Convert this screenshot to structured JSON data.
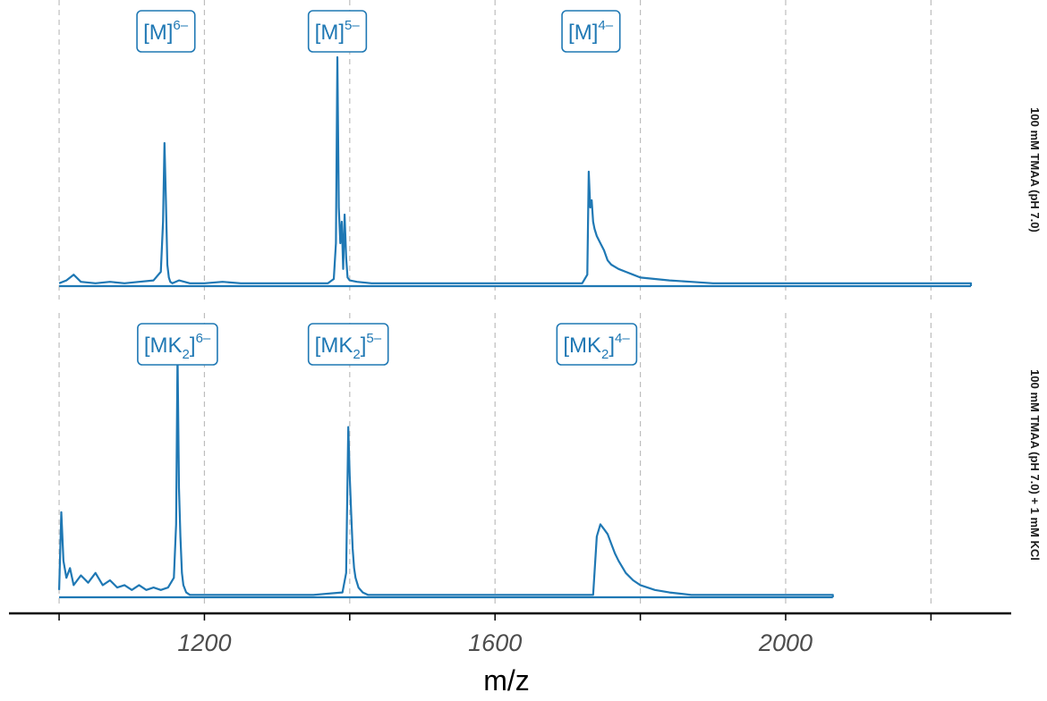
{
  "chart_data": {
    "type": "line",
    "xlabel": "m/z",
    "ylabel": "",
    "xlim": [
      995,
      2255
    ],
    "xticks": [
      1200,
      1600,
      2000
    ],
    "xtick_labels": [
      "1200",
      "1600",
      "2000"
    ],
    "grid_x": [
      1000,
      1200,
      1400,
      1600,
      1800,
      2000,
      2200
    ],
    "grid": "vertical dashed",
    "facets": [
      {
        "strip_label": "100 mM TMAA (pH 7.0)",
        "x_end": 2255,
        "series": [
          {
            "name": "",
            "x": [
              1000,
              1010,
              1020,
              1030,
              1050,
              1070,
              1090,
              1110,
              1130,
              1140,
              1143,
              1145,
              1147,
              1149,
              1151,
              1153,
              1156,
              1165,
              1180,
              1200,
              1225,
              1250,
              1275,
              1300,
              1325,
              1350,
              1370,
              1378,
              1381,
              1383,
              1385,
              1387,
              1389,
              1391,
              1393,
              1395,
              1397,
              1400,
              1410,
              1430,
              1460,
              1500,
              1550,
              1600,
              1650,
              1700,
              1720,
              1727,
              1729,
              1731,
              1733,
              1735,
              1737,
              1740,
              1745,
              1750,
              1755,
              1760,
              1770,
              1780,
              1790,
              1800,
              1820,
              1840,
              1870,
              1900,
              1950,
              2000,
              2050,
              2100,
              2150,
              2200,
              2255
            ],
            "y": [
              0.02,
              0.04,
              0.08,
              0.03,
              0.02,
              0.03,
              0.02,
              0.03,
              0.04,
              0.1,
              0.45,
              1.0,
              0.6,
              0.15,
              0.06,
              0.03,
              0.02,
              0.04,
              0.02,
              0.02,
              0.03,
              0.02,
              0.02,
              0.02,
              0.02,
              0.02,
              0.02,
              0.05,
              0.3,
              1.6,
              0.55,
              0.3,
              0.45,
              0.12,
              0.5,
              0.2,
              0.06,
              0.04,
              0.03,
              0.02,
              0.02,
              0.02,
              0.02,
              0.02,
              0.02,
              0.02,
              0.02,
              0.08,
              0.8,
              0.55,
              0.6,
              0.45,
              0.4,
              0.35,
              0.3,
              0.25,
              0.18,
              0.15,
              0.12,
              0.1,
              0.08,
              0.06,
              0.05,
              0.04,
              0.03,
              0.02,
              0.02,
              0.02,
              0.02,
              0.02,
              0.02,
              0.02,
              0.02
            ]
          }
        ],
        "annotations": [
          {
            "x": 1147,
            "base": "[M]",
            "sub": "",
            "sup": "6–"
          },
          {
            "x": 1383,
            "base": "[M]",
            "sub": "",
            "sup": "5–"
          },
          {
            "x": 1732,
            "base": "[M]",
            "sub": "",
            "sup": "4–"
          }
        ]
      },
      {
        "strip_label": "100 mM TMAA (pH 7.0) + 1 mM KCl",
        "x_end": 2065,
        "series": [
          {
            "name": "",
            "x": [
              1000,
              1003,
              1006,
              1010,
              1015,
              1020,
              1030,
              1040,
              1050,
              1060,
              1070,
              1080,
              1090,
              1100,
              1110,
              1120,
              1130,
              1140,
              1150,
              1158,
              1161,
              1163,
              1165,
              1167,
              1169,
              1171,
              1175,
              1180,
              1190,
              1210,
              1250,
              1300,
              1350,
              1390,
              1395,
              1398,
              1400,
              1402,
              1404,
              1406,
              1408,
              1412,
              1418,
              1425,
              1440,
              1500,
              1600,
              1700,
              1735,
              1740,
              1745,
              1750,
              1755,
              1760,
              1765,
              1770,
              1780,
              1790,
              1800,
              1820,
              1840,
              1870,
              1900,
              1950,
              2000,
              2065
            ],
            "y": [
              0.03,
              0.35,
              0.15,
              0.08,
              0.12,
              0.05,
              0.09,
              0.06,
              0.1,
              0.05,
              0.07,
              0.04,
              0.05,
              0.03,
              0.05,
              0.03,
              0.04,
              0.03,
              0.04,
              0.08,
              0.3,
              1.0,
              0.45,
              0.25,
              0.1,
              0.05,
              0.02,
              0.01,
              0.01,
              0.01,
              0.01,
              0.01,
              0.01,
              0.02,
              0.1,
              0.7,
              0.5,
              0.35,
              0.2,
              0.12,
              0.08,
              0.04,
              0.02,
              0.01,
              0.01,
              0.01,
              0.01,
              0.01,
              0.01,
              0.25,
              0.3,
              0.28,
              0.26,
              0.22,
              0.18,
              0.15,
              0.1,
              0.07,
              0.05,
              0.03,
              0.02,
              0.01,
              0.01,
              0.01,
              0.01,
              0.01
            ]
          }
        ],
        "annotations": [
          {
            "x": 1163,
            "base": "[MK",
            "sub": "2",
            "sup": "6–"
          },
          {
            "x": 1398,
            "base": "[MK",
            "sub": "2",
            "sup": "5–"
          },
          {
            "x": 1740,
            "base": "[MK",
            "sub": "2",
            "sup": "4–"
          }
        ]
      }
    ]
  }
}
